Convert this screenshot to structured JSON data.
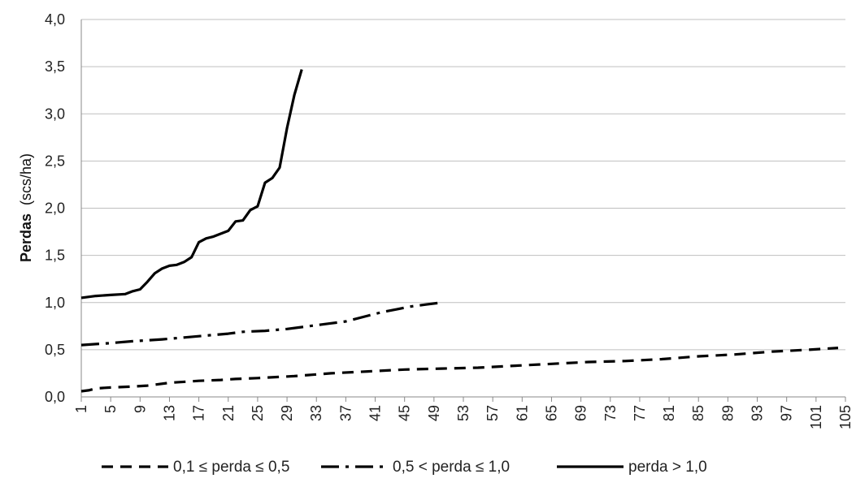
{
  "chart_data": {
    "type": "line",
    "title": "",
    "ylabel_bold": "Perdas",
    "ylabel_unit": "(scs/ha)",
    "xlabel": "",
    "ylim": [
      0,
      4
    ],
    "yticks": [
      "0,0",
      "0,5",
      "1,0",
      "1,5",
      "2,0",
      "2,5",
      "3,0",
      "3,5",
      "4,0"
    ],
    "xlim": [
      1,
      105
    ],
    "xticks": [
      "1",
      "5",
      "9",
      "13",
      "17",
      "21",
      "25",
      "29",
      "33",
      "37",
      "41",
      "45",
      "49",
      "53",
      "57",
      "61",
      "65",
      "69",
      "73",
      "77",
      "81",
      "85",
      "89",
      "93",
      "97",
      "101",
      "105"
    ],
    "grid": "horizontal",
    "legend_position": "bottom",
    "series": [
      {
        "name": "0,1 ≤ perda ≤ 0,5",
        "style": "dashed",
        "x": [
          1,
          2,
          3,
          5,
          8,
          10,
          13,
          17,
          20,
          22,
          25,
          30,
          35,
          40,
          45,
          50,
          55,
          60,
          65,
          70,
          75,
          80,
          85,
          90,
          95,
          100,
          104
        ],
        "y": [
          0.06,
          0.07,
          0.09,
          0.1,
          0.11,
          0.12,
          0.15,
          0.17,
          0.18,
          0.19,
          0.2,
          0.22,
          0.25,
          0.27,
          0.29,
          0.3,
          0.31,
          0.33,
          0.35,
          0.37,
          0.38,
          0.4,
          0.43,
          0.45,
          0.48,
          0.5,
          0.52
        ]
      },
      {
        "name": "0,5 < perda ≤ 1,0",
        "style": "dashdot",
        "x": [
          1,
          3,
          5,
          8,
          12,
          15,
          18,
          21,
          23,
          26,
          29,
          32,
          35,
          37,
          38,
          40,
          42,
          44,
          46,
          48,
          50
        ],
        "y": [
          0.55,
          0.56,
          0.57,
          0.59,
          0.61,
          0.63,
          0.65,
          0.67,
          0.69,
          0.7,
          0.72,
          0.75,
          0.78,
          0.8,
          0.82,
          0.86,
          0.9,
          0.93,
          0.96,
          0.98,
          1.0
        ]
      },
      {
        "name": "perda > 1,0",
        "style": "solid",
        "x": [
          1,
          3,
          5,
          7,
          8,
          9,
          10,
          11,
          12,
          13,
          14,
          15,
          16,
          17,
          18,
          19,
          20,
          21,
          22,
          23,
          24,
          25,
          26,
          27,
          28,
          29,
          30,
          31
        ],
        "y": [
          1.05,
          1.07,
          1.08,
          1.09,
          1.12,
          1.14,
          1.22,
          1.31,
          1.36,
          1.39,
          1.4,
          1.43,
          1.48,
          1.64,
          1.68,
          1.7,
          1.73,
          1.76,
          1.86,
          1.87,
          1.98,
          2.02,
          2.27,
          2.32,
          2.43,
          2.85,
          3.2,
          3.47
        ]
      }
    ]
  }
}
